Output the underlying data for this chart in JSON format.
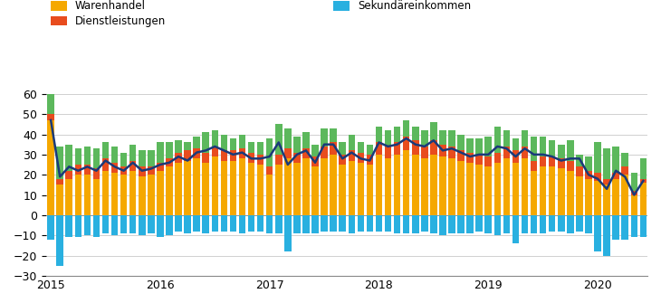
{
  "colors": {
    "leistungsbilanz": "#1a3a7a",
    "warenhandel": "#f5a800",
    "dienstleistungen": "#e84c1e",
    "primaereinkommen": "#5cb85c",
    "sekundaereinkommen": "#29b0e0"
  },
  "ylim": [
    -30,
    60
  ],
  "yticks": [
    -30,
    -20,
    -10,
    0,
    10,
    20,
    30,
    40,
    50,
    60
  ],
  "months": 66,
  "xtick_positions": [
    0,
    12,
    24,
    36,
    48,
    60
  ],
  "xtick_labels": [
    "2015",
    "2016",
    "2017",
    "2018",
    "2019",
    "2020"
  ],
  "warenhandel": [
    47,
    15,
    18,
    20,
    20,
    18,
    22,
    21,
    20,
    22,
    19,
    20,
    22,
    24,
    26,
    27,
    28,
    26,
    29,
    27,
    27,
    28,
    26,
    25,
    20,
    25,
    28,
    26,
    28,
    24,
    28,
    30,
    25,
    27,
    26,
    25,
    30,
    28,
    30,
    32,
    30,
    28,
    30,
    29,
    28,
    27,
    26,
    25,
    24,
    26,
    28,
    26,
    28,
    22,
    24,
    24,
    23,
    22,
    19,
    18,
    17,
    15,
    18,
    20,
    10,
    16
  ],
  "dienstleistungen": [
    3,
    3,
    4,
    5,
    5,
    5,
    6,
    5,
    4,
    5,
    5,
    4,
    4,
    4,
    5,
    5,
    5,
    5,
    5,
    5,
    5,
    5,
    5,
    5,
    4,
    5,
    5,
    5,
    5,
    5,
    6,
    6,
    5,
    5,
    5,
    5,
    6,
    6,
    6,
    7,
    7,
    6,
    7,
    6,
    6,
    5,
    5,
    5,
    5,
    5,
    6,
    6,
    6,
    5,
    5,
    5,
    5,
    5,
    5,
    4,
    4,
    3,
    3,
    4,
    2,
    2
  ],
  "primaereinkommen": [
    10,
    16,
    13,
    8,
    9,
    10,
    8,
    8,
    7,
    8,
    8,
    8,
    10,
    8,
    6,
    4,
    6,
    10,
    8,
    8,
    6,
    7,
    5,
    6,
    14,
    15,
    10,
    8,
    8,
    6,
    9,
    7,
    6,
    8,
    5,
    5,
    8,
    8,
    8,
    8,
    7,
    8,
    9,
    7,
    8,
    8,
    7,
    8,
    10,
    13,
    8,
    6,
    8,
    12,
    10,
    8,
    7,
    10,
    6,
    7,
    15,
    15,
    13,
    7,
    9,
    10
  ],
  "sekundaereinkommen": [
    -12,
    -25,
    -11,
    -11,
    -10,
    -11,
    -9,
    -10,
    -9,
    -9,
    -10,
    -9,
    -11,
    -10,
    -8,
    -9,
    -8,
    -9,
    -8,
    -8,
    -8,
    -9,
    -8,
    -8,
    -9,
    -9,
    -18,
    -9,
    -9,
    -9,
    -8,
    -8,
    -8,
    -9,
    -8,
    -8,
    -8,
    -8,
    -9,
    -9,
    -9,
    -8,
    -9,
    -10,
    -9,
    -9,
    -9,
    -8,
    -9,
    -10,
    -9,
    -14,
    -9,
    -9,
    -9,
    -8,
    -8,
    -9,
    -8,
    -9,
    -18,
    -20,
    -12,
    -12,
    -11,
    -11
  ],
  "leistungsbilanz": [
    47,
    19,
    24,
    22,
    24,
    22,
    27,
    24,
    22,
    26,
    22,
    23,
    25,
    26,
    29,
    27,
    31,
    32,
    34,
    32,
    30,
    31,
    28,
    28,
    29,
    36,
    25,
    30,
    32,
    26,
    35,
    35,
    28,
    31,
    28,
    27,
    36,
    34,
    35,
    38,
    35,
    34,
    37,
    32,
    33,
    31,
    29,
    30,
    30,
    34,
    33,
    29,
    33,
    30,
    30,
    29,
    27,
    28,
    28,
    20,
    18,
    13,
    22,
    19,
    10,
    17
  ]
}
